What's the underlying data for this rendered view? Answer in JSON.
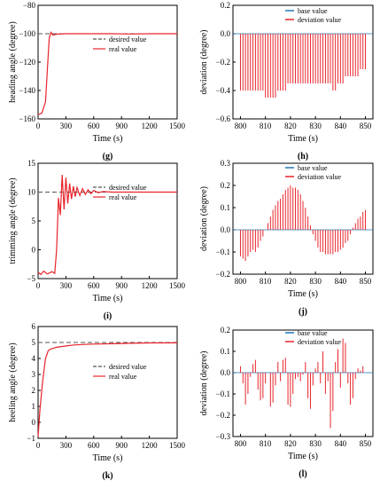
{
  "colors": {
    "red": "#e8242b",
    "gray": "#555555",
    "blue": "#1f77b4",
    "axis": "#000000"
  },
  "chart_data": [
    {
      "id": "g",
      "type": "line",
      "panel_label": "(g)",
      "xlabel": "Time (s)",
      "ylabel": "heading angle (degree)",
      "xlim": [
        0,
        1500
      ],
      "ylim": [
        -160,
        -80
      ],
      "xticks": [
        "0",
        "300",
        "600",
        "900",
        "1200",
        "1500"
      ],
      "yticks": [
        "-160",
        "-140",
        "-120",
        "-100",
        "-80"
      ],
      "legend_position": "center-right",
      "legend": [
        "desired value",
        "real value"
      ],
      "series": [
        {
          "name": "desired value",
          "style": "dashed",
          "color": "#555555",
          "x": [
            0,
            1500
          ],
          "y": [
            -100,
            -100
          ]
        },
        {
          "name": "real value",
          "style": "solid",
          "color": "#e8242b",
          "x": [
            0,
            40,
            80,
            100,
            120,
            140,
            160,
            200,
            300,
            500,
            800,
            1000,
            1200,
            1500
          ],
          "y": [
            -157,
            -156,
            -148,
            -125,
            -103,
            -99,
            -101,
            -100.3,
            -100,
            -100,
            -100,
            -100.2,
            -100,
            -100
          ]
        }
      ]
    },
    {
      "id": "h",
      "type": "bar",
      "panel_label": "(h)",
      "xlabel": "Time (s)",
      "ylabel": "deviation (degree)",
      "xlim": [
        797,
        853
      ],
      "ylim": [
        -0.6,
        0.2
      ],
      "xticks": [
        "800",
        "810",
        "820",
        "830",
        "840",
        "850"
      ],
      "yticks": [
        "-0.6",
        "-0.4",
        "-0.2",
        "0.0",
        "0.2"
      ],
      "legend_position": "top-right",
      "legend": [
        "base value",
        "deviation value"
      ],
      "x": [
        800,
        801,
        802,
        803,
        804,
        805,
        806,
        807,
        808,
        809,
        810,
        811,
        812,
        813,
        814,
        815,
        816,
        817,
        818,
        819,
        820,
        821,
        822,
        823,
        824,
        825,
        826,
        827,
        828,
        829,
        830,
        831,
        832,
        833,
        834,
        835,
        836,
        837,
        838,
        839,
        840,
        841,
        842,
        843,
        844,
        845,
        846,
        847,
        848,
        849,
        850
      ],
      "values": [
        -0.4,
        -0.4,
        -0.4,
        -0.4,
        -0.4,
        -0.4,
        -0.4,
        -0.4,
        -0.4,
        -0.4,
        -0.45,
        -0.45,
        -0.45,
        -0.45,
        -0.45,
        -0.4,
        -0.4,
        -0.4,
        -0.4,
        -0.35,
        -0.35,
        -0.35,
        -0.35,
        -0.35,
        -0.35,
        -0.35,
        -0.35,
        -0.35,
        -0.35,
        -0.35,
        -0.35,
        -0.35,
        -0.35,
        -0.35,
        -0.35,
        -0.35,
        -0.35,
        -0.4,
        -0.4,
        -0.35,
        -0.35,
        -0.35,
        -0.3,
        -0.3,
        -0.3,
        -0.3,
        -0.3,
        -0.3,
        -0.25,
        -0.25,
        -0.25
      ]
    },
    {
      "id": "i",
      "type": "line",
      "panel_label": "(i)",
      "xlabel": "Time (s)",
      "ylabel": "trimming angle (degree)",
      "xlim": [
        0,
        1500
      ],
      "ylim": [
        -5,
        15
      ],
      "xticks": [
        "0",
        "300",
        "600",
        "900",
        "1200",
        "1500"
      ],
      "yticks": [
        "-5",
        "0",
        "5",
        "10",
        "15"
      ],
      "legend_position": "center-right",
      "legend": [
        "desired value",
        "real value"
      ],
      "series": [
        {
          "name": "desired value",
          "style": "dashed",
          "color": "#555555",
          "x": [
            0,
            1500
          ],
          "y": [
            10,
            10
          ]
        },
        {
          "name": "real value",
          "style": "solid",
          "color": "#e8242b",
          "x": [
            0,
            30,
            60,
            100,
            150,
            180,
            200,
            220,
            240,
            260,
            280,
            300,
            320,
            340,
            360,
            380,
            400,
            420,
            450,
            480,
            510,
            540,
            570,
            600,
            650,
            700,
            800,
            900,
            1000,
            1200,
            1500
          ],
          "y": [
            -3.9,
            -4.3,
            -3.7,
            -4.2,
            -3.8,
            -4.1,
            0,
            9,
            6,
            13,
            7,
            12.5,
            8,
            11.5,
            8.8,
            11,
            9.2,
            10.8,
            9.4,
            10.6,
            9.6,
            10.4,
            9.7,
            10.3,
            9.9,
            10.1,
            10,
            10,
            10,
            10,
            10
          ]
        }
      ]
    },
    {
      "id": "j",
      "type": "bar",
      "panel_label": "(j)",
      "xlabel": "Time (s)",
      "ylabel": "deviation (degree)",
      "xlim": [
        797,
        853
      ],
      "ylim": [
        -0.2,
        0.3
      ],
      "xticks": [
        "800",
        "810",
        "820",
        "830",
        "840",
        "850"
      ],
      "yticks": [
        "-0.2",
        "-0.1",
        "0.0",
        "0.1",
        "0.2",
        "0.3"
      ],
      "legend_position": "top-right",
      "legend": [
        "base value",
        "deviation value"
      ],
      "x": [
        800,
        801,
        802,
        803,
        804,
        805,
        806,
        807,
        808,
        809,
        810,
        811,
        812,
        813,
        814,
        815,
        816,
        817,
        818,
        819,
        820,
        821,
        822,
        823,
        824,
        825,
        826,
        827,
        828,
        829,
        830,
        831,
        832,
        833,
        834,
        835,
        836,
        837,
        838,
        839,
        840,
        841,
        842,
        843,
        844,
        845,
        846,
        847,
        848,
        849,
        850
      ],
      "values": [
        -0.12,
        -0.13,
        -0.14,
        -0.12,
        -0.1,
        -0.09,
        -0.1,
        -0.08,
        -0.05,
        -0.03,
        0,
        0.03,
        0.06,
        0.09,
        0.11,
        0.13,
        0.14,
        0.16,
        0.18,
        0.19,
        0.2,
        0.19,
        0.19,
        0.18,
        0.16,
        0.13,
        0.1,
        0.06,
        0.02,
        -0.02,
        -0.05,
        -0.08,
        -0.1,
        -0.1,
        -0.11,
        -0.11,
        -0.11,
        -0.11,
        -0.1,
        -0.1,
        -0.09,
        -0.08,
        -0.06,
        -0.05,
        -0.02,
        0.01,
        0.03,
        0.05,
        0.06,
        0.08,
        0.09
      ]
    },
    {
      "id": "k",
      "type": "line",
      "panel_label": "(k)",
      "xlabel": "Time (s)",
      "ylabel": "heeling angle (degree)",
      "xlim": [
        0,
        1500
      ],
      "ylim": [
        -1,
        6
      ],
      "xticks": [
        "0",
        "300",
        "600",
        "900",
        "1200",
        "1500"
      ],
      "yticks": [
        "-1",
        "0",
        "1",
        "2",
        "3",
        "4",
        "5",
        "6"
      ],
      "legend_position": "center-right",
      "legend": [
        "desired value",
        "real value"
      ],
      "series": [
        {
          "name": "desired value",
          "style": "dashed",
          "color": "#555555",
          "x": [
            0,
            1500
          ],
          "y": [
            5,
            5
          ]
        },
        {
          "name": "real value",
          "style": "solid",
          "color": "#e8242b",
          "x": [
            0,
            20,
            50,
            80,
            110,
            140,
            170,
            200,
            260,
            320,
            400,
            500,
            600,
            800,
            1000,
            1200,
            1500
          ],
          "y": [
            -0.9,
            0.8,
            2.6,
            4.0,
            4.5,
            4.6,
            4.65,
            4.7,
            4.75,
            4.8,
            4.85,
            4.88,
            4.9,
            4.92,
            4.95,
            4.97,
            4.98
          ]
        }
      ]
    },
    {
      "id": "l",
      "type": "bar",
      "panel_label": "(l)",
      "xlabel": "Time (s)",
      "ylabel": "deviation (degree)",
      "xlim": [
        797,
        853
      ],
      "ylim": [
        -0.3,
        0.2
      ],
      "xticks": [
        "800",
        "810",
        "820",
        "830",
        "840",
        "850"
      ],
      "yticks": [
        "-0.3",
        "-0.2",
        "-0.1",
        "0.0",
        "0.1",
        "0.2"
      ],
      "legend_position": "top-right",
      "legend": [
        "base value",
        "deviation value"
      ],
      "x": [
        800,
        801,
        802,
        803,
        804,
        805,
        806,
        807,
        808,
        809,
        810,
        811,
        812,
        813,
        814,
        815,
        816,
        817,
        818,
        819,
        820,
        821,
        822,
        823,
        824,
        825,
        826,
        827,
        828,
        829,
        830,
        831,
        832,
        833,
        834,
        835,
        836,
        837,
        838,
        839,
        840,
        841,
        842,
        843,
        844,
        845,
        846,
        847,
        848,
        849,
        850
      ],
      "values": [
        0.03,
        -0.05,
        -0.15,
        -0.1,
        -0.02,
        0.04,
        0.06,
        -0.08,
        -0.13,
        -0.12,
        -0.05,
        0,
        -0.16,
        -0.14,
        -0.06,
        0.05,
        -0.04,
        0.06,
        0.07,
        -0.15,
        -0.16,
        -0.1,
        -0.03,
        -0.02,
        -0.04,
        -0.01,
        0.05,
        -0.12,
        -0.17,
        -0.06,
        0.02,
        0.05,
        -0.05,
        0.1,
        -0.1,
        -0.04,
        -0.26,
        -0.18,
        0.05,
        0.11,
        -0.07,
        0.16,
        0.14,
        -0.05,
        -0.15,
        -0.12,
        -0.03,
        0.02,
        0.01,
        0.03,
        0
      ]
    }
  ]
}
